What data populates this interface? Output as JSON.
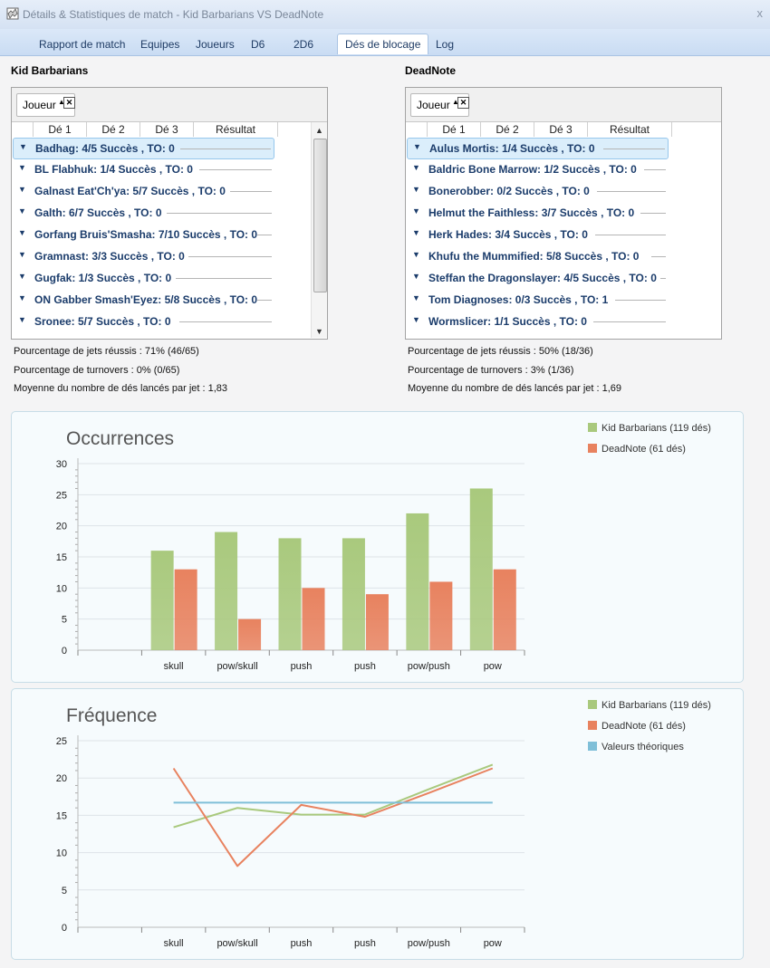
{
  "window": {
    "title": "Détails & Statistiques de match - Kid Barbarians VS DeadNote",
    "close_glyph": "x"
  },
  "tabs": [
    {
      "label": "Rapport de match"
    },
    {
      "label": "Equipes"
    },
    {
      "label": "Joueurs"
    },
    {
      "label": "D6"
    },
    {
      "label": "2D6"
    },
    {
      "label": "Dés de blocage",
      "active": true
    },
    {
      "label": "Log"
    }
  ],
  "teams": [
    {
      "name": "Kid Barbarians",
      "group_label": "Joueur",
      "columns": [
        "Dé 1",
        "Dé 2",
        "Dé 3",
        "Résultat"
      ],
      "players": [
        "Badhag: 4/5 Succès , TO: 0",
        "BL Flabhuk: 1/4 Succès , TO: 0",
        "Galnast Eat'Ch'ya: 5/7 Succès , TO: 0",
        "Galth: 6/7 Succès , TO: 0",
        "Gorfang Bruis'Smasha: 7/10 Succès , TO: 0",
        "Gramnast: 3/3 Succès , TO: 0",
        "Gugfak: 1/3 Succès , TO: 0",
        "ON Gabber Smash'Eyez: 5/8 Succès , TO: 0",
        "Sronee: 5/7 Succès , TO: 0"
      ],
      "stats": [
        "Pourcentage de jets réussis : 71% (46/65)",
        "Pourcentage de turnovers : 0% (0/65)",
        "Moyenne du nombre de dés lancés par jet : 1,83"
      ]
    },
    {
      "name": "DeadNote",
      "group_label": "Joueur",
      "columns": [
        "Dé 1",
        "Dé 2",
        "Dé 3",
        "Résultat"
      ],
      "players": [
        "Aulus Mortis: 1/4 Succès , TO: 0",
        "Baldric Bone Marrow: 1/2 Succès , TO: 0",
        "Bonerobber: 0/2 Succès , TO: 0",
        "Helmut the Faithless: 3/7 Succès , TO: 0",
        "Herk Hades: 3/4 Succès , TO: 0",
        "Khufu the Mummified: 5/8 Succès , TO: 0",
        "Steffan the Dragonslayer: 4/5 Succès , TO: 0",
        "Tom Diagnoses: 0/3 Succès , TO: 1",
        "Wormslicer: 1/1 Succès , TO: 0"
      ],
      "stats": [
        "Pourcentage de jets réussis : 50% (18/36)",
        "Pourcentage de turnovers : 3% (1/36)",
        "Moyenne du nombre de dés lancés par jet : 1,69"
      ]
    }
  ],
  "chart_data": [
    {
      "type": "bar",
      "title": "Occurrences",
      "categories": [
        "",
        "skull",
        "pow/skull",
        "push",
        "push",
        "pow/push",
        "pow"
      ],
      "series": [
        {
          "name": "Kid Barbarians (119 dés)",
          "color": "#a9c97d",
          "values": [
            null,
            16,
            19,
            18,
            18,
            22,
            26
          ]
        },
        {
          "name": "DeadNote (61 dés)",
          "color": "#e8825f",
          "values": [
            null,
            13,
            5,
            10,
            9,
            11,
            13
          ]
        }
      ],
      "ylim": [
        0,
        30
      ],
      "yticks": [
        0,
        5,
        10,
        15,
        20,
        25,
        30
      ],
      "grid": true,
      "legend": "top-right"
    },
    {
      "type": "line",
      "title": "Fréquence",
      "categories": [
        "",
        "skull",
        "pow/skull",
        "push",
        "push",
        "pow/push",
        "pow"
      ],
      "series": [
        {
          "name": "Kid Barbarians (119 dés)",
          "color": "#a9c97d",
          "values": [
            null,
            13.4,
            16.0,
            15.1,
            15.1,
            18.5,
            21.8
          ]
        },
        {
          "name": "DeadNote (61 dés)",
          "color": "#e8825f",
          "values": [
            null,
            21.3,
            8.2,
            16.4,
            14.8,
            18.0,
            21.3
          ]
        },
        {
          "name": "Valeurs théoriques",
          "color": "#7fbfd8",
          "values": [
            null,
            16.7,
            16.7,
            16.7,
            16.7,
            16.7,
            16.7
          ]
        }
      ],
      "ylim": [
        0,
        25
      ],
      "yticks": [
        0,
        5,
        10,
        15,
        20,
        25
      ],
      "grid": true,
      "legend": "top-right"
    }
  ]
}
